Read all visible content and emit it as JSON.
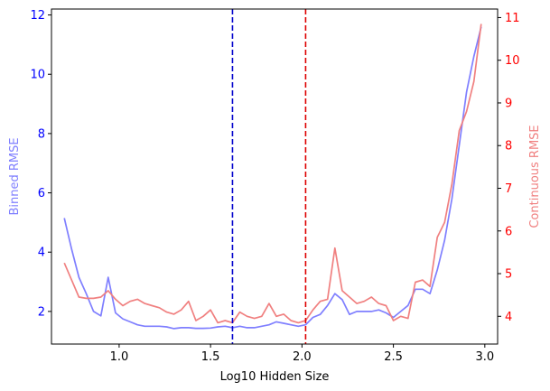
{
  "chart_data": {
    "type": "line",
    "xlabel": "Log10 Hidden Size",
    "ylabel_left": "Binned RMSE",
    "ylabel_right": "Continuous RMSE",
    "xlim": [
      0.63,
      3.07
    ],
    "ylim_left": [
      0.9,
      12.2
    ],
    "ylim_right": [
      3.35,
      11.2
    ],
    "x_ticks": [
      1.0,
      1.5,
      2.0,
      2.5,
      3.0
    ],
    "x_tick_labels": [
      "1.0",
      "1.5",
      "2.0",
      "2.5",
      "3.0"
    ],
    "left_ticks": [
      2,
      4,
      6,
      8,
      10,
      12
    ],
    "left_tick_labels": [
      "2",
      "4",
      "6",
      "8",
      "10",
      "12"
    ],
    "right_ticks": [
      4,
      5,
      6,
      7,
      8,
      9,
      10,
      11
    ],
    "right_tick_labels": [
      "4",
      "5",
      "6",
      "7",
      "8",
      "9",
      "10",
      "11"
    ],
    "grid": false,
    "legend": "none",
    "vlines": [
      {
        "x": 1.62,
        "color": "#0000cc",
        "style": "dashed"
      },
      {
        "x": 2.02,
        "color": "#dd0000",
        "style": "dashed"
      }
    ],
    "series": [
      {
        "axis": "left",
        "color": "#7f7fff",
        "x": [
          0.7,
          0.74,
          0.78,
          0.82,
          0.86,
          0.9,
          0.94,
          0.98,
          1.02,
          1.06,
          1.1,
          1.14,
          1.18,
          1.22,
          1.26,
          1.3,
          1.34,
          1.38,
          1.42,
          1.46,
          1.5,
          1.54,
          1.58,
          1.62,
          1.66,
          1.7,
          1.74,
          1.78,
          1.82,
          1.86,
          1.9,
          1.94,
          1.98,
          2.02,
          2.06,
          2.1,
          2.14,
          2.18,
          2.22,
          2.26,
          2.3,
          2.34,
          2.38,
          2.42,
          2.46,
          2.5,
          2.54,
          2.58,
          2.62,
          2.66,
          2.7,
          2.74,
          2.78,
          2.82,
          2.86,
          2.9,
          2.94,
          2.98
        ],
        "values": [
          5.15,
          4.1,
          3.15,
          2.6,
          2.0,
          1.85,
          3.15,
          1.95,
          1.75,
          1.65,
          1.55,
          1.5,
          1.5,
          1.5,
          1.48,
          1.42,
          1.45,
          1.45,
          1.43,
          1.43,
          1.44,
          1.48,
          1.5,
          1.45,
          1.5,
          1.45,
          1.45,
          1.5,
          1.55,
          1.65,
          1.6,
          1.55,
          1.5,
          1.55,
          1.8,
          1.9,
          2.2,
          2.6,
          2.4,
          1.9,
          2.0,
          2.0,
          2.0,
          2.05,
          1.95,
          1.8,
          2.0,
          2.2,
          2.75,
          2.75,
          2.6,
          3.4,
          4.4,
          5.8,
          7.6,
          9.4,
          10.6,
          11.6
        ]
      },
      {
        "axis": "right",
        "color": "#f08080",
        "x": [
          0.7,
          0.74,
          0.78,
          0.82,
          0.86,
          0.9,
          0.94,
          0.98,
          1.02,
          1.06,
          1.1,
          1.14,
          1.18,
          1.22,
          1.26,
          1.3,
          1.34,
          1.38,
          1.42,
          1.46,
          1.5,
          1.54,
          1.58,
          1.62,
          1.66,
          1.7,
          1.74,
          1.78,
          1.82,
          1.86,
          1.9,
          1.94,
          1.98,
          2.02,
          2.06,
          2.1,
          2.14,
          2.18,
          2.22,
          2.26,
          2.3,
          2.34,
          2.38,
          2.42,
          2.46,
          2.5,
          2.54,
          2.58,
          2.62,
          2.66,
          2.7,
          2.74,
          2.78,
          2.82,
          2.86,
          2.9,
          2.94,
          2.98
        ],
        "values": [
          5.25,
          4.85,
          4.45,
          4.42,
          4.42,
          4.45,
          4.6,
          4.4,
          4.25,
          4.35,
          4.4,
          4.3,
          4.25,
          4.2,
          4.1,
          4.05,
          4.15,
          4.35,
          3.9,
          4.0,
          4.15,
          3.85,
          3.9,
          3.85,
          4.1,
          4.0,
          3.95,
          4.0,
          4.3,
          4.0,
          4.05,
          3.9,
          3.85,
          3.9,
          4.15,
          4.35,
          4.4,
          5.6,
          4.6,
          4.45,
          4.3,
          4.35,
          4.45,
          4.3,
          4.25,
          3.9,
          4.0,
          3.95,
          4.8,
          4.85,
          4.7,
          5.85,
          6.2,
          7.1,
          8.35,
          8.8,
          9.5,
          10.85
        ]
      }
    ]
  }
}
